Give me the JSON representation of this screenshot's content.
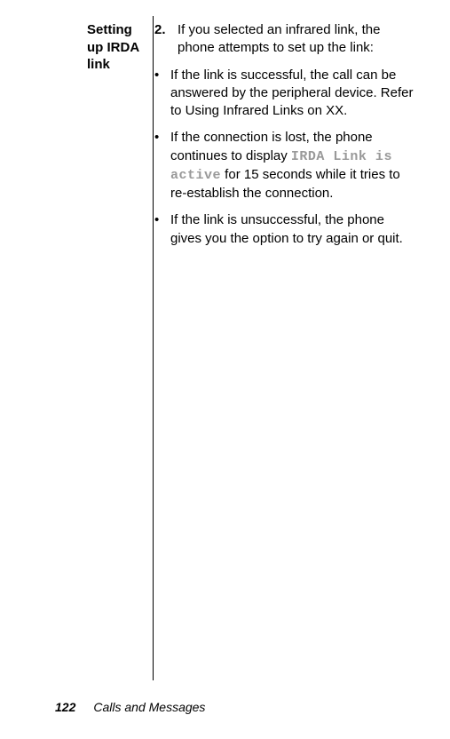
{
  "sideHeading": "Setting up IRDA link",
  "step": {
    "number": "2.",
    "text": "If you selected an infrared link, the phone attempts to set up the link:"
  },
  "bullets": [
    {
      "text": "If the link is successful, the call can be answered by the peripheral device. Refer to Using Infrared Links on XX."
    },
    {
      "prefix": "If the connection is lost, the phone continues to display ",
      "mono": "IRDA Link is active",
      "suffix": " for 15 seconds while it tries to re-establish the connection."
    },
    {
      "text": "If the link is unsuccessful, the phone gives you the option to try again or quit."
    }
  ],
  "footer": {
    "pageNumber": "122",
    "title": "Calls and Messages"
  }
}
